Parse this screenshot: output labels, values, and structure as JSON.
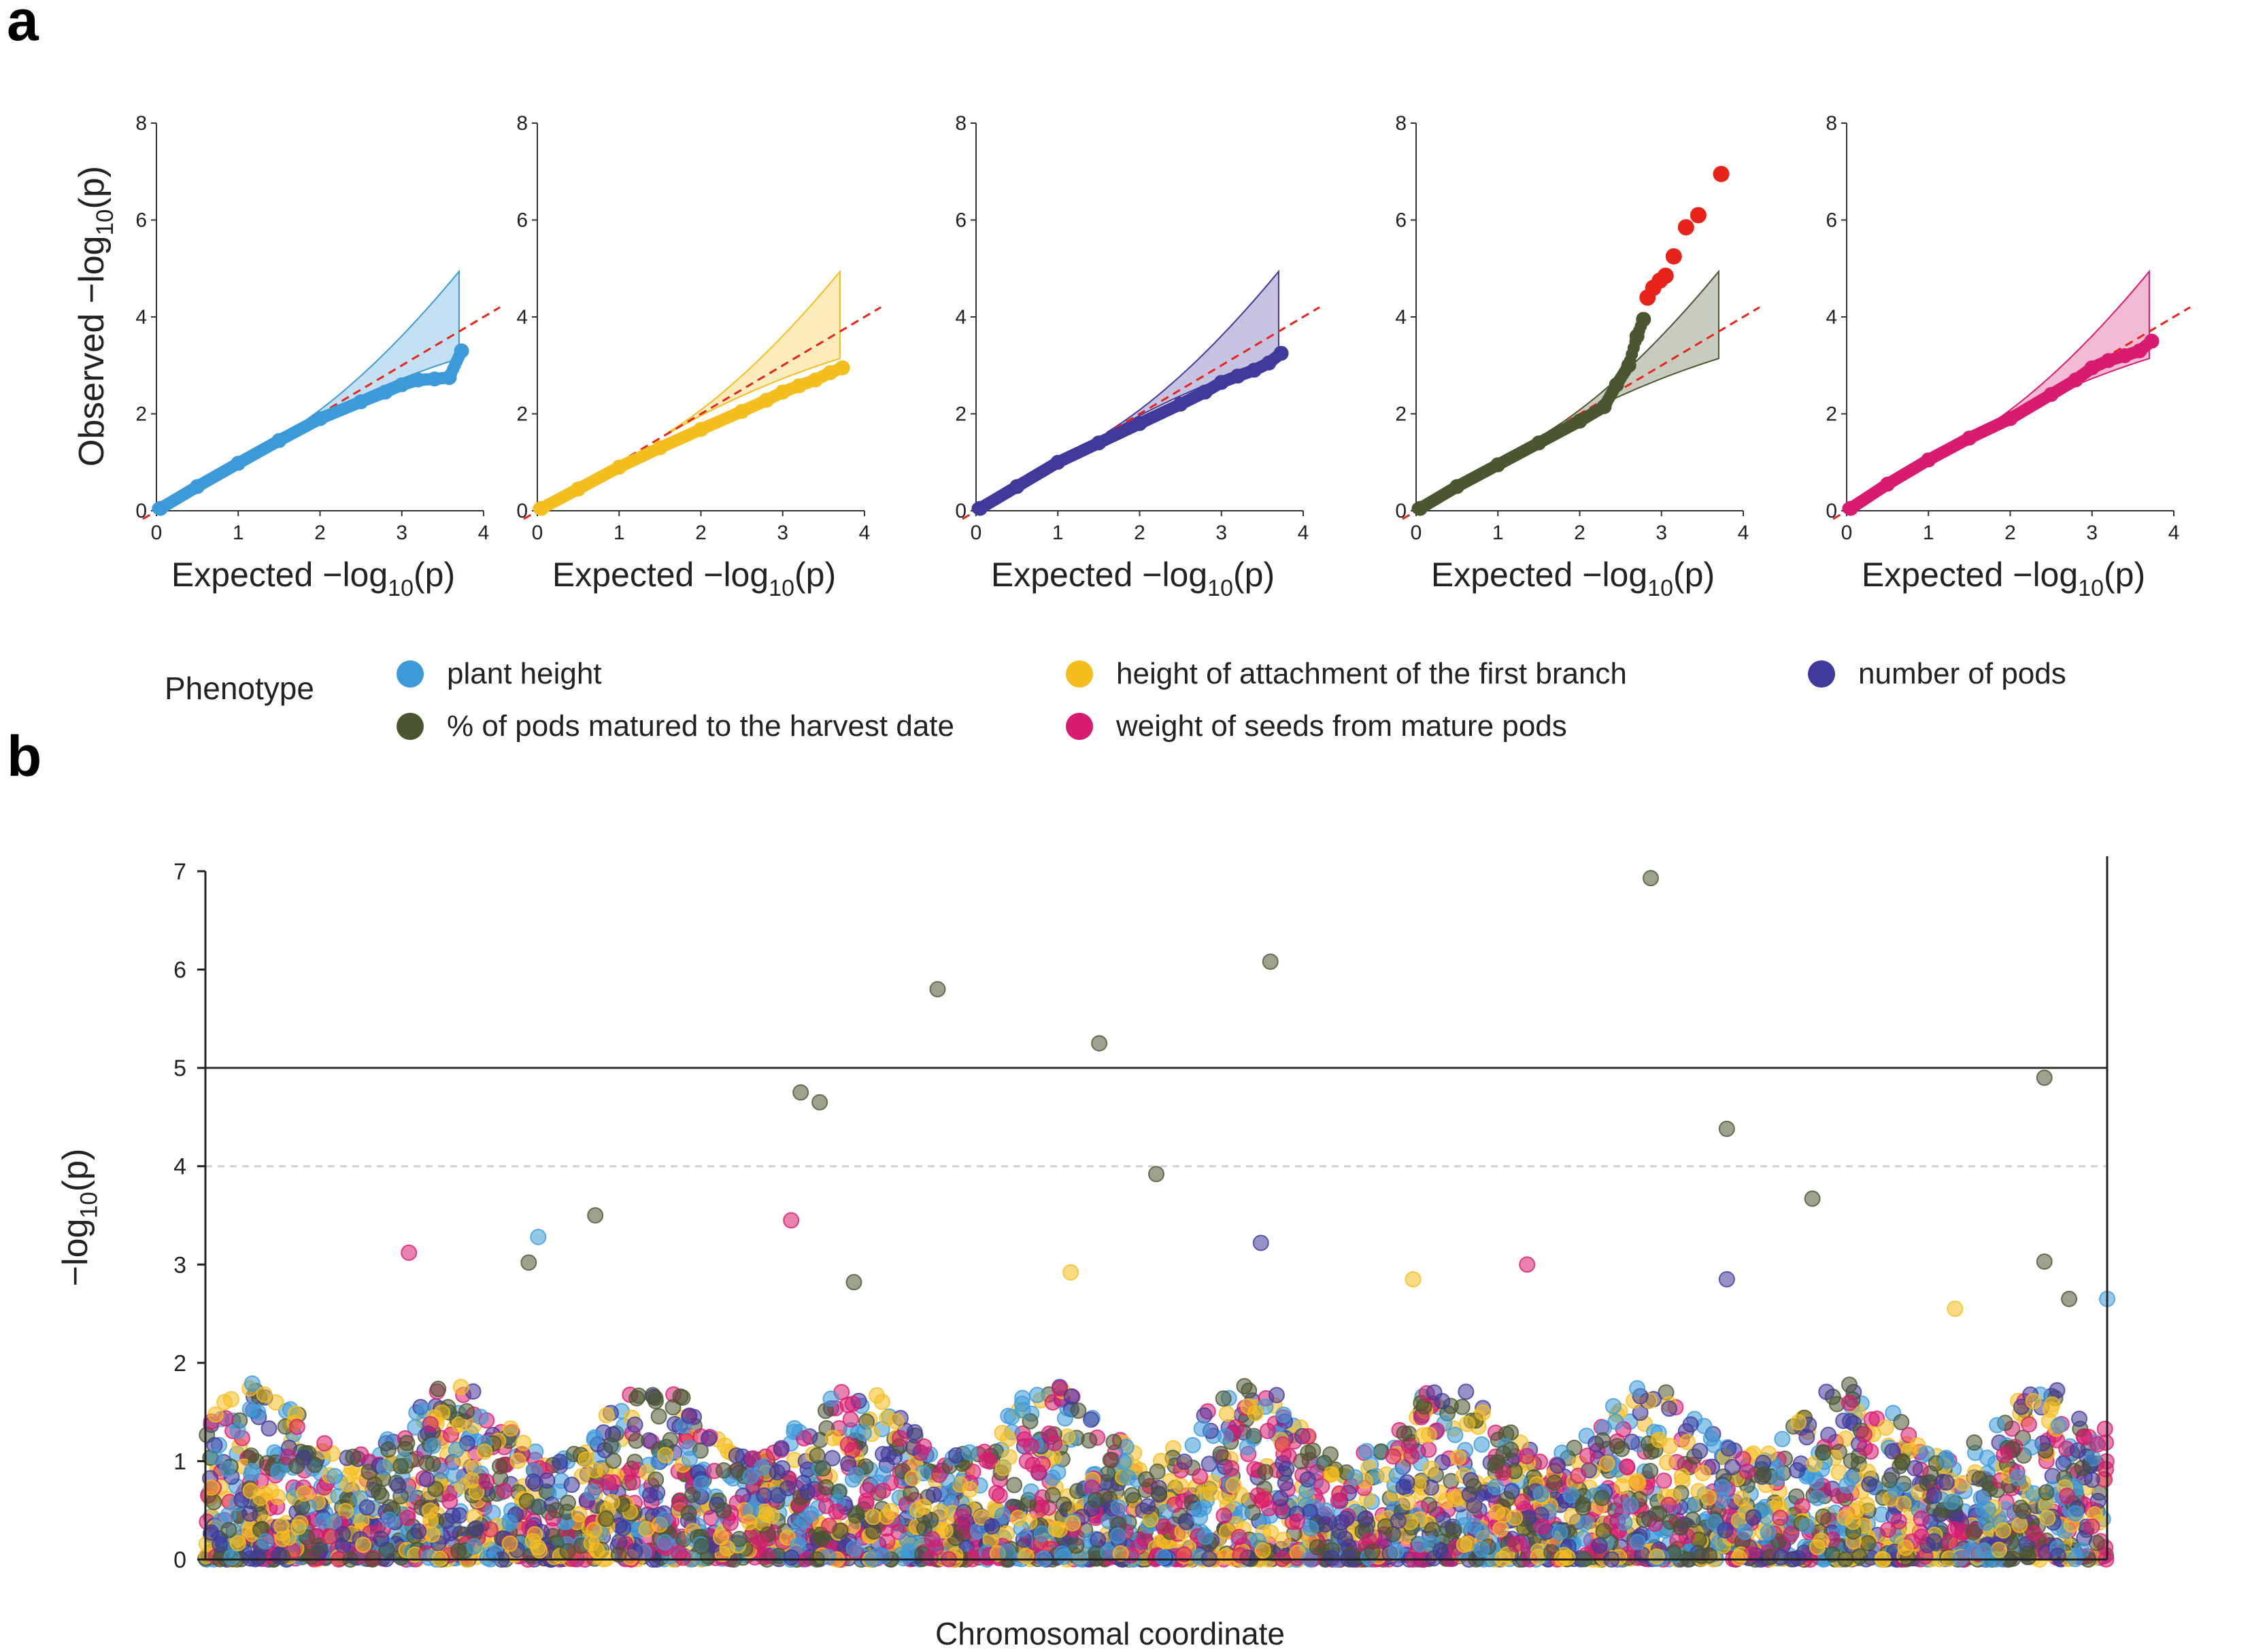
{
  "panels": {
    "a": "a",
    "b": "b"
  },
  "legend": {
    "title": "Phenotype",
    "items": [
      {
        "label": "plant height",
        "color": "#3d9ad9"
      },
      {
        "label": "height of attachment of the first branch",
        "color": "#f5be1f"
      },
      {
        "label": "number of pods",
        "color": "#40399a"
      },
      {
        "label": "% of pods matured to the harvest date",
        "color": "#4a5630"
      },
      {
        "label": "weight of seeds from mature pods",
        "color": "#d81b70"
      }
    ]
  },
  "chart_data": [
    {
      "type": "scatter",
      "panel": "a",
      "subtype": "qq",
      "xlabel": "Expected  −log10(p)",
      "ylabel": "Observed  −log10(p)",
      "xlim": [
        0,
        4
      ],
      "ylim": [
        0,
        8
      ],
      "xticks": [
        0,
        1,
        2,
        3,
        4
      ],
      "yticks": [
        0,
        2,
        4,
        6,
        8
      ],
      "reference_line": "y = x (red dashed)",
      "confidence_band": true,
      "series": [
        {
          "name": "plant height",
          "color": "#3d9ad9",
          "points": [
            [
              0.05,
              0.05
            ],
            [
              0.5,
              0.5
            ],
            [
              1.0,
              0.98
            ],
            [
              1.5,
              1.45
            ],
            [
              2.0,
              1.9
            ],
            [
              2.5,
              2.25
            ],
            [
              2.8,
              2.45
            ],
            [
              3.0,
              2.6
            ],
            [
              3.2,
              2.7
            ],
            [
              3.4,
              2.72
            ],
            [
              3.58,
              2.75
            ],
            [
              3.73,
              3.3
            ]
          ]
        },
        {
          "name": "height of attachment of the first branch",
          "color": "#f5be1f",
          "points": [
            [
              0.05,
              0.05
            ],
            [
              0.5,
              0.45
            ],
            [
              1.0,
              0.9
            ],
            [
              1.5,
              1.3
            ],
            [
              2.0,
              1.68
            ],
            [
              2.5,
              2.05
            ],
            [
              2.8,
              2.28
            ],
            [
              3.0,
              2.45
            ],
            [
              3.2,
              2.58
            ],
            [
              3.4,
              2.7
            ],
            [
              3.58,
              2.85
            ],
            [
              3.73,
              2.95
            ]
          ]
        },
        {
          "name": "number of pods",
          "color": "#40399a",
          "points": [
            [
              0.05,
              0.05
            ],
            [
              0.5,
              0.5
            ],
            [
              1.0,
              1.0
            ],
            [
              1.5,
              1.4
            ],
            [
              2.0,
              1.8
            ],
            [
              2.5,
              2.2
            ],
            [
              2.8,
              2.45
            ],
            [
              3.0,
              2.65
            ],
            [
              3.2,
              2.78
            ],
            [
              3.4,
              2.9
            ],
            [
              3.58,
              3.05
            ],
            [
              3.73,
              3.25
            ]
          ]
        },
        {
          "name": "% of pods matured to the harvest date",
          "color": "#4a5630",
          "points": [
            [
              0.05,
              0.05
            ],
            [
              0.5,
              0.5
            ],
            [
              1.0,
              0.95
            ],
            [
              1.5,
              1.4
            ],
            [
              2.0,
              1.85
            ],
            [
              2.3,
              2.15
            ],
            [
              2.45,
              2.6
            ],
            [
              2.6,
              3.0
            ],
            [
              2.7,
              3.6
            ],
            [
              2.78,
              3.95
            ]
          ],
          "highlight": {
            "color": "#e8231a",
            "points": [
              [
                2.83,
                4.4
              ],
              [
                2.9,
                4.6
              ],
              [
                2.98,
                4.75
              ],
              [
                3.05,
                4.85
              ],
              [
                3.15,
                5.25
              ],
              [
                3.3,
                5.85
              ],
              [
                3.45,
                6.1
              ],
              [
                3.73,
                6.95
              ]
            ]
          }
        },
        {
          "name": "weight of seeds from mature pods",
          "color": "#d81b70",
          "points": [
            [
              0.05,
              0.05
            ],
            [
              0.5,
              0.55
            ],
            [
              1.0,
              1.05
            ],
            [
              1.5,
              1.5
            ],
            [
              2.0,
              1.9
            ],
            [
              2.5,
              2.4
            ],
            [
              2.8,
              2.7
            ],
            [
              3.0,
              2.95
            ],
            [
              3.2,
              3.1
            ],
            [
              3.4,
              3.2
            ],
            [
              3.58,
              3.3
            ],
            [
              3.73,
              3.5
            ]
          ]
        }
      ]
    },
    {
      "type": "scatter",
      "panel": "b",
      "subtype": "manhattan",
      "xlabel": "Chromosomal coordinate",
      "ylabel": "−log10(p)",
      "ylim": [
        0,
        7
      ],
      "yticks": [
        0,
        1,
        2,
        3,
        4,
        5,
        6,
        7
      ],
      "xlim": [
        0,
        1
      ],
      "threshold_solid": 5,
      "threshold_dashed": 4,
      "bulk_range": [
        0,
        1.8
      ],
      "notable_points": [
        {
          "x": 0.313,
          "y": 4.75,
          "series": 3
        },
        {
          "x": 0.323,
          "y": 4.65,
          "series": 3
        },
        {
          "x": 0.308,
          "y": 3.45,
          "series": 4
        },
        {
          "x": 0.205,
          "y": 3.5,
          "series": 3
        },
        {
          "x": 0.107,
          "y": 3.12,
          "series": 4
        },
        {
          "x": 0.17,
          "y": 3.02,
          "series": 3
        },
        {
          "x": 0.175,
          "y": 3.28,
          "series": 0
        },
        {
          "x": 0.385,
          "y": 5.8,
          "series": 3
        },
        {
          "x": 0.47,
          "y": 5.25,
          "series": 3
        },
        {
          "x": 0.5,
          "y": 3.92,
          "series": 3
        },
        {
          "x": 0.555,
          "y": 3.22,
          "series": 2
        },
        {
          "x": 0.56,
          "y": 6.08,
          "series": 3
        },
        {
          "x": 0.455,
          "y": 2.92,
          "series": 1
        },
        {
          "x": 0.341,
          "y": 2.82,
          "series": 3
        },
        {
          "x": 0.635,
          "y": 2.85,
          "series": 1
        },
        {
          "x": 0.695,
          "y": 3.0,
          "series": 4
        },
        {
          "x": 0.76,
          "y": 6.93,
          "series": 3
        },
        {
          "x": 0.8,
          "y": 4.38,
          "series": 3
        },
        {
          "x": 0.8,
          "y": 2.85,
          "series": 2
        },
        {
          "x": 0.845,
          "y": 3.67,
          "series": 3
        },
        {
          "x": 0.967,
          "y": 4.9,
          "series": 3
        },
        {
          "x": 0.967,
          "y": 3.03,
          "series": 3
        },
        {
          "x": 0.92,
          "y": 2.55,
          "series": 1
        },
        {
          "x": 0.98,
          "y": 2.65,
          "series": 3
        },
        {
          "x": 1.0,
          "y": 2.65,
          "series": 0
        },
        {
          "x": 0.01,
          "y": 1.6,
          "series": 1
        }
      ]
    }
  ]
}
